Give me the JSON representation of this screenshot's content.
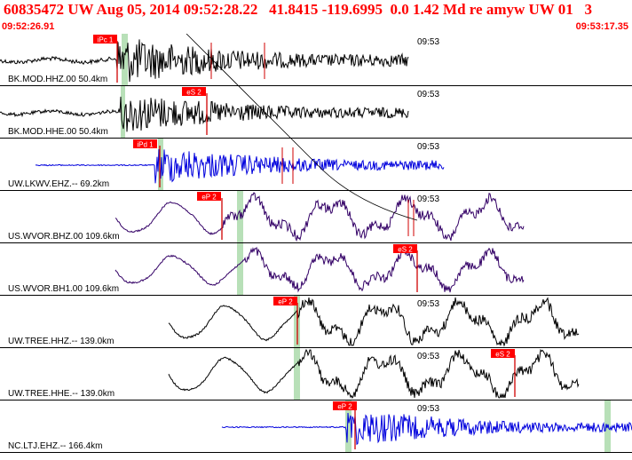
{
  "header": {
    "title": "60835472 UW Aug 05, 2014 09:52:28.22   41.8415 -119.6995  0.0 1.42 Md re amyw UW 01   3",
    "start_time": "09:52:26.91",
    "end_time": "09:53:17.35"
  },
  "colors": {
    "header_text": "#ff0000",
    "pick_box": "#ff0000",
    "pick_text": "#ffffff",
    "pick_window": "#b8e0b8",
    "trace_black": "#000000",
    "trace_blue": "#0000dd",
    "trace_purple": "#330066",
    "pick_line": "#d00000"
  },
  "traces": [
    {
      "id": "trace-bk-mod-hhz",
      "label": "BK.MOD.HHZ.00 50.4km",
      "time_label": "09:53",
      "picks": [
        {
          "label": "iPc 1"
        }
      ],
      "color": "#000000",
      "kind": "noise"
    },
    {
      "id": "trace-bk-mod-hhe",
      "label": "BK.MOD.HHE.00 50.4km",
      "time_label": "09:53",
      "picks": [
        {
          "label": "eS 2"
        }
      ],
      "color": "#000000",
      "kind": "noise"
    },
    {
      "id": "trace-uw-lkwv-ehz",
      "label": "UW.LKWV.EHZ.-- 69.2km",
      "time_label": "09:53",
      "picks": [
        {
          "label": "iPd 1"
        }
      ],
      "color": "#0000dd",
      "kind": "noisy"
    },
    {
      "id": "trace-us-wvor-bhz",
      "label": "US.WVOR.BHZ.00 109.6km",
      "time_label": "09:53",
      "picks": [
        {
          "label": "eP 2"
        }
      ],
      "color": "#330066",
      "kind": "wave"
    },
    {
      "id": "trace-us-wvor-bh1",
      "label": "US.WVOR.BH1.00 109.6km",
      "time_label": "",
      "picks": [
        {
          "label": "eS 2"
        }
      ],
      "color": "#330066",
      "kind": "wave"
    },
    {
      "id": "trace-uw-tree-hhz",
      "label": "UW.TREE.HHZ.-- 139.0km",
      "time_label": "09:53",
      "picks": [
        {
          "label": "eP 2"
        }
      ],
      "color": "#000000",
      "kind": "wave"
    },
    {
      "id": "trace-uw-tree-hhe",
      "label": "UW.TREE.HHE.-- 139.0km",
      "time_label": "09:53",
      "picks": [
        {
          "label": "eS 2"
        }
      ],
      "color": "#000000",
      "kind": "wave"
    },
    {
      "id": "trace-nc-ltj-ehz",
      "label": "NC.LTJ.EHZ.-- 166.4km",
      "time_label": "09:53",
      "picks": [
        {
          "label": "eP 2"
        }
      ],
      "color": "#0000dd",
      "kind": "noisy"
    }
  ]
}
